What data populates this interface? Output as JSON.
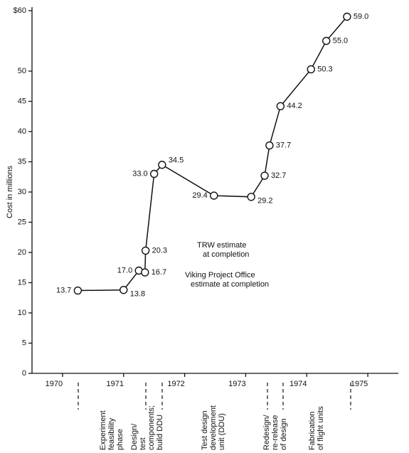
{
  "chart_data": {
    "type": "line",
    "y_label": "Cost in millions",
    "x": [
      1970.25,
      1971.0,
      1971.25,
      1971.35,
      1971.36,
      1971.5,
      1971.63,
      1972.48,
      1973.09,
      1973.31,
      1973.39,
      1973.57,
      1974.07,
      1974.32,
      1974.66
    ],
    "values": [
      13.7,
      13.8,
      17.0,
      16.7,
      20.3,
      33.0,
      34.5,
      29.4,
      29.2,
      32.7,
      37.7,
      44.2,
      50.3,
      55.0,
      59.0
    ],
    "value_labels": [
      "13.7",
      "13.8",
      "17.0",
      "16.7",
      "20.3",
      "33.0",
      "34.5",
      "29.4",
      "29.2",
      "32.7",
      "37.7",
      "44.2",
      "50.3",
      "55.0",
      "59.0"
    ],
    "color": "#111111",
    "xlim": [
      1969.5,
      1975.5
    ],
    "xticks": [
      1970,
      1971,
      1972,
      1973,
      1974,
      1975
    ],
    "ylim": [
      0,
      60
    ],
    "yticks": [
      0,
      5,
      10,
      15,
      20,
      25,
      30,
      35,
      40,
      45,
      50,
      {
        "value": 60,
        "label": "$60"
      }
    ],
    "annotations": [
      [
        "TRW estimate",
        "at completion"
      ],
      [
        "Viking Project Office",
        "estimate at completion"
      ]
    ],
    "phases": [
      [
        "Experiment",
        "feasibility",
        "phase"
      ],
      [
        "Design/",
        "test",
        "components;",
        "build DDU"
      ],
      [
        "Test design",
        "development",
        "unit (DDU)"
      ],
      [
        "Redesign/",
        "re-release",
        "of design"
      ],
      [
        "Fabrication",
        "of flight units"
      ]
    ]
  }
}
